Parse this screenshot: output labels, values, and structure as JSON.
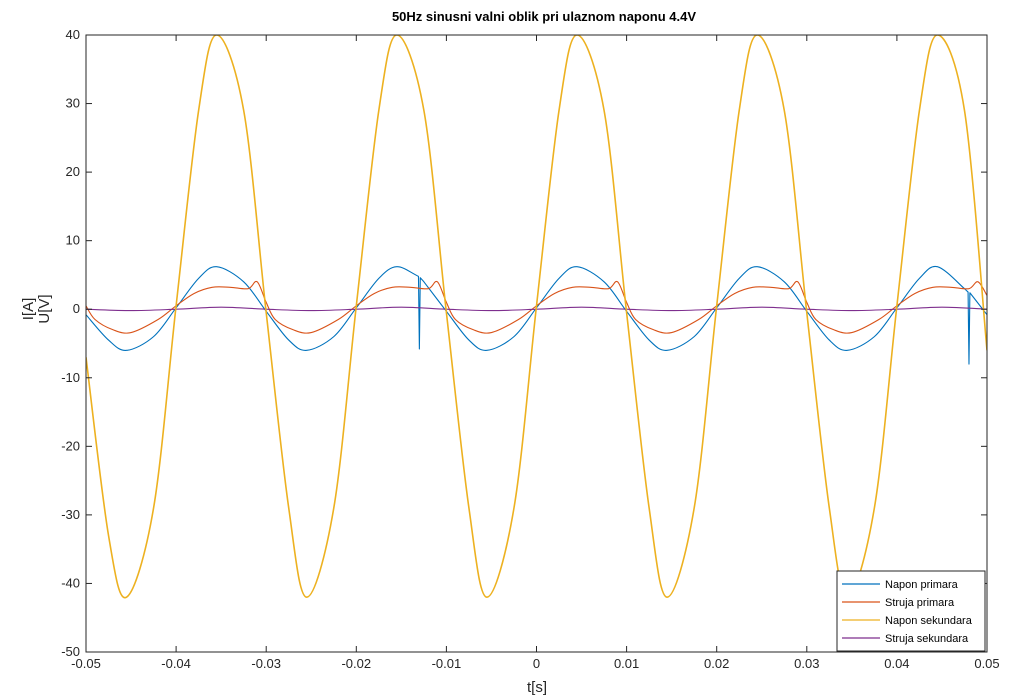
{
  "chart_data": {
    "type": "line",
    "title": "50Hz sinusni valni oblik pri ulaznom naponu 4.4V",
    "xlabel": "t[s]",
    "ylabel_lines": [
      "I[A]",
      "U[V]"
    ],
    "xlim": [
      -0.05,
      0.05
    ],
    "ylim": [
      -50,
      40
    ],
    "xticks": [
      -0.05,
      -0.04,
      -0.03,
      -0.02,
      -0.01,
      0,
      0.01,
      0.02,
      0.03,
      0.04,
      0.05
    ],
    "xtick_labels": [
      "-0.05",
      "-0.04",
      "-0.03",
      "-0.02",
      "-0.01",
      "0",
      "0.01",
      "0.02",
      "0.03",
      "0.04",
      "0.05"
    ],
    "yticks": [
      -50,
      -40,
      -30,
      -20,
      -10,
      0,
      10,
      20,
      30,
      40
    ],
    "ytick_labels": [
      "-50",
      "-40",
      "-30",
      "-20",
      "-10",
      "0",
      "10",
      "20",
      "30",
      "40"
    ],
    "grid": false,
    "legend_position": "bottom-right",
    "series": [
      {
        "name": "Napon primara",
        "color": "#0072BD",
        "x": [
          -0.05,
          -0.0475,
          -0.0455,
          -0.0425,
          -0.04,
          -0.0375,
          -0.0355,
          -0.0325,
          -0.03,
          -0.0275,
          -0.0255,
          -0.0225,
          -0.02,
          -0.0175,
          -0.0155,
          -0.0131,
          -0.013,
          -0.0129,
          -0.0125,
          -0.01,
          -0.0075,
          -0.0055,
          -0.0025,
          0,
          0.0025,
          0.0045,
          0.0075,
          0.01,
          0.0125,
          0.0145,
          0.0175,
          0.02,
          0.0225,
          0.0245,
          0.0275,
          0.03,
          0.0325,
          0.0345,
          0.0375,
          0.04,
          0.0425,
          0.0445,
          0.0475,
          0.0479,
          0.048,
          0.0481,
          0.05
        ],
        "y": [
          -0.8,
          -4.5,
          -6.0,
          -4.0,
          0.2,
          4.5,
          6.2,
          4.0,
          -0.3,
          -4.5,
          -6.0,
          -4.0,
          0.2,
          4.5,
          6.2,
          4.8,
          -5.8,
          4.6,
          4.0,
          -0.3,
          -4.5,
          -6.0,
          -4.0,
          0.2,
          4.5,
          6.2,
          4.0,
          -0.3,
          -4.5,
          -6.0,
          -4.0,
          0.2,
          4.5,
          6.2,
          4.0,
          -0.3,
          -4.5,
          -6.0,
          -4.0,
          0.2,
          4.5,
          6.2,
          3.0,
          2.5,
          -8.0,
          2.4,
          -0.8
        ]
      },
      {
        "name": "Struja primara",
        "color": "#D95319",
        "x": [
          -0.05,
          -0.049,
          -0.047,
          -0.045,
          -0.042,
          -0.04,
          -0.038,
          -0.036,
          -0.034,
          -0.032,
          -0.031,
          -0.03,
          -0.029,
          -0.027,
          -0.025,
          -0.022,
          -0.02,
          -0.018,
          -0.016,
          -0.014,
          -0.012,
          -0.011,
          -0.01,
          -0.009,
          -0.007,
          -0.005,
          -0.002,
          0,
          0.002,
          0.004,
          0.006,
          0.008,
          0.009,
          0.01,
          0.011,
          0.013,
          0.015,
          0.018,
          0.02,
          0.022,
          0.024,
          0.026,
          0.028,
          0.029,
          0.03,
          0.031,
          0.033,
          0.035,
          0.038,
          0.04,
          0.042,
          0.044,
          0.046,
          0.048,
          0.049,
          0.05
        ],
        "y": [
          0.5,
          -1.5,
          -3.0,
          -3.4,
          -1.5,
          0.5,
          2.3,
          3.2,
          3.2,
          3.0,
          4.0,
          1.0,
          -1.5,
          -3.0,
          -3.4,
          -1.5,
          0.5,
          2.3,
          3.2,
          3.2,
          3.0,
          4.0,
          1.0,
          -1.5,
          -3.0,
          -3.4,
          -1.5,
          0.5,
          2.3,
          3.2,
          3.2,
          3.0,
          4.0,
          1.0,
          -1.5,
          -3.0,
          -3.4,
          -1.5,
          0.5,
          2.3,
          3.2,
          3.2,
          3.0,
          4.0,
          1.0,
          -1.5,
          -3.0,
          -3.4,
          -1.5,
          0.5,
          2.3,
          3.2,
          3.2,
          3.0,
          4.0,
          2.0
        ]
      },
      {
        "name": "Napon sekundara",
        "color": "#EDB120",
        "x": [
          -0.05,
          -0.0475,
          -0.0455,
          -0.0425,
          -0.04,
          -0.0375,
          -0.0355,
          -0.0325,
          -0.03,
          -0.0275,
          -0.0255,
          -0.0225,
          -0.02,
          -0.0175,
          -0.0155,
          -0.0125,
          -0.01,
          -0.0075,
          -0.0055,
          -0.0025,
          0,
          0.0025,
          0.0045,
          0.0075,
          0.01,
          0.0125,
          0.0145,
          0.0175,
          0.02,
          0.0225,
          0.0245,
          0.0275,
          0.03,
          0.0325,
          0.0345,
          0.0375,
          0.04,
          0.0425,
          0.0445,
          0.0475,
          0.05
        ],
        "y": [
          -7.0,
          -33.0,
          -42.0,
          -29.0,
          0.5,
          29.0,
          40.0,
          29.0,
          -0.5,
          -29.0,
          -42.0,
          -29.0,
          0.5,
          29.0,
          40.0,
          29.0,
          -0.5,
          -29.0,
          -42.0,
          -29.0,
          0.5,
          29.0,
          40.0,
          29.0,
          -0.5,
          -29.0,
          -42.0,
          -29.0,
          0.5,
          29.0,
          40.0,
          29.0,
          -0.5,
          -29.0,
          -42.0,
          -29.0,
          0.5,
          29.0,
          40.0,
          29.0,
          -6.0
        ]
      },
      {
        "name": "Struja sekundara",
        "color": "#7E2F8E",
        "x": [
          -0.05,
          -0.045,
          -0.04,
          -0.035,
          -0.03,
          -0.025,
          -0.02,
          -0.015,
          -0.01,
          -0.005,
          0,
          0.005,
          0.01,
          0.015,
          0.02,
          0.025,
          0.03,
          0.035,
          0.04,
          0.045,
          0.05
        ],
        "y": [
          0.0,
          -0.2,
          0.0,
          0.3,
          0.0,
          -0.2,
          0.0,
          0.3,
          0.0,
          -0.2,
          0.0,
          0.3,
          0.0,
          -0.2,
          0.0,
          0.3,
          0.0,
          -0.2,
          0.0,
          0.3,
          0.0
        ]
      }
    ]
  }
}
